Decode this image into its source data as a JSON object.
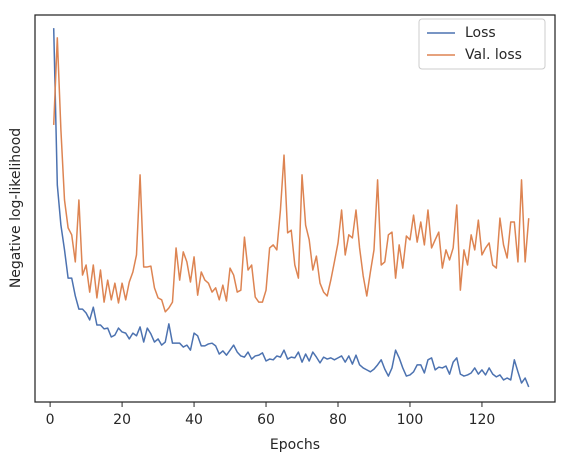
{
  "chart_data": {
    "type": "line",
    "xlabel": "Epochs",
    "ylabel": "Negative log-likelihood",
    "x": [
      1,
      2,
      3,
      4,
      5,
      6,
      7,
      8,
      9,
      10,
      11,
      12,
      13,
      14,
      15,
      16,
      17,
      18,
      19,
      20,
      21,
      22,
      23,
      24,
      25,
      26,
      27,
      28,
      29,
      30,
      31,
      32,
      33,
      34,
      35,
      36,
      37,
      38,
      39,
      40,
      41,
      42,
      43,
      44,
      45,
      46,
      47,
      48,
      49,
      50,
      51,
      52,
      53,
      54,
      55,
      56,
      57,
      58,
      59,
      60,
      61,
      62,
      63,
      64,
      65,
      66,
      67,
      68,
      69,
      70,
      71,
      72,
      73,
      74,
      75,
      76,
      77,
      78,
      79,
      80,
      81,
      82,
      83,
      84,
      85,
      86,
      87,
      88,
      89,
      90,
      91,
      92,
      93,
      94,
      95,
      96,
      97,
      98,
      99,
      100,
      101,
      102,
      103,
      104,
      105,
      106,
      107,
      108,
      109,
      110,
      111,
      112,
      113,
      114,
      115,
      116,
      117,
      118,
      119,
      120,
      121,
      122,
      123,
      124,
      125,
      126,
      127,
      128,
      129,
      130,
      131,
      132,
      133
    ],
    "series": [
      {
        "name": "Loss",
        "color": "#4c72b0",
        "values": [
          0.966,
          0.561,
          0.457,
          0.393,
          0.32,
          0.32,
          0.274,
          0.24,
          0.24,
          0.23,
          0.212,
          0.245,
          0.199,
          0.199,
          0.189,
          0.191,
          0.168,
          0.173,
          0.191,
          0.181,
          0.178,
          0.163,
          0.178,
          0.171,
          0.194,
          0.155,
          0.191,
          0.176,
          0.155,
          0.163,
          0.147,
          0.155,
          0.202,
          0.152,
          0.152,
          0.152,
          0.142,
          0.147,
          0.134,
          0.178,
          0.171,
          0.145,
          0.145,
          0.15,
          0.152,
          0.145,
          0.124,
          0.132,
          0.121,
          0.134,
          0.147,
          0.129,
          0.119,
          0.116,
          0.129,
          0.111,
          0.119,
          0.121,
          0.127,
          0.106,
          0.111,
          0.109,
          0.119,
          0.116,
          0.134,
          0.111,
          0.116,
          0.114,
          0.129,
          0.103,
          0.124,
          0.106,
          0.129,
          0.116,
          0.101,
          0.116,
          0.111,
          0.114,
          0.109,
          0.114,
          0.119,
          0.103,
          0.119,
          0.098,
          0.121,
          0.096,
          0.088,
          0.083,
          0.078,
          0.085,
          0.096,
          0.109,
          0.085,
          0.067,
          0.088,
          0.134,
          0.114,
          0.088,
          0.067,
          0.07,
          0.078,
          0.096,
          0.096,
          0.075,
          0.109,
          0.114,
          0.083,
          0.09,
          0.088,
          0.093,
          0.072,
          0.103,
          0.114,
          0.072,
          0.067,
          0.07,
          0.075,
          0.088,
          0.072,
          0.083,
          0.07,
          0.088,
          0.072,
          0.065,
          0.07,
          0.057,
          0.062,
          0.057,
          0.109,
          0.078,
          0.049,
          0.062,
          0.039
        ]
      },
      {
        "name": "Val. loss",
        "color": "#dd8452",
        "values": [
          0.716,
          0.941,
          0.703,
          0.522,
          0.45,
          0.432,
          0.362,
          0.522,
          0.328,
          0.354,
          0.284,
          0.354,
          0.269,
          0.341,
          0.258,
          0.315,
          0.264,
          0.307,
          0.256,
          0.307,
          0.264,
          0.31,
          0.336,
          0.38,
          0.587,
          0.349,
          0.349,
          0.351,
          0.295,
          0.269,
          0.264,
          0.233,
          0.243,
          0.258,
          0.398,
          0.315,
          0.388,
          0.362,
          0.31,
          0.375,
          0.276,
          0.336,
          0.315,
          0.307,
          0.284,
          0.295,
          0.264,
          0.302,
          0.261,
          0.346,
          0.328,
          0.284,
          0.289,
          0.426,
          0.341,
          0.354,
          0.271,
          0.258,
          0.258,
          0.289,
          0.398,
          0.406,
          0.393,
          0.496,
          0.638,
          0.437,
          0.444,
          0.354,
          0.32,
          0.587,
          0.457,
          0.419,
          0.341,
          0.377,
          0.307,
          0.284,
          0.274,
          0.315,
          0.362,
          0.411,
          0.496,
          0.38,
          0.432,
          0.424,
          0.496,
          0.398,
          0.326,
          0.274,
          0.336,
          0.393,
          0.574,
          0.354,
          0.362,
          0.432,
          0.439,
          0.32,
          0.406,
          0.346,
          0.429,
          0.419,
          0.483,
          0.413,
          0.465,
          0.406,
          0.496,
          0.398,
          0.419,
          0.439,
          0.346,
          0.393,
          0.367,
          0.398,
          0.509,
          0.289,
          0.393,
          0.354,
          0.432,
          0.393,
          0.47,
          0.38,
          0.398,
          0.411,
          0.354,
          0.346,
          0.475,
          0.406,
          0.372,
          0.465,
          0.465,
          0.362,
          0.574,
          0.362,
          0.475
        ]
      }
    ],
    "xlim": [
      -4.2,
      140.3
    ],
    "xticks": [
      0,
      20,
      40,
      60,
      80,
      100,
      120
    ],
    "ylim": [
      0,
      1
    ],
    "legend": "upper right"
  }
}
